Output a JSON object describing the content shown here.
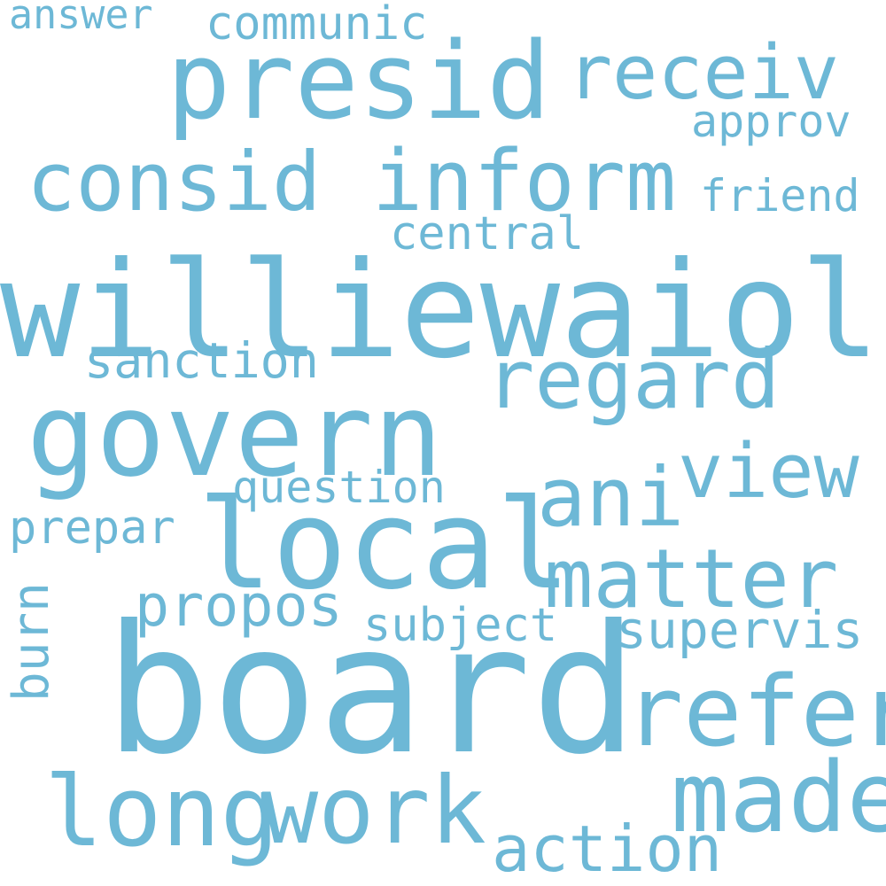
{
  "word_cloud": {
    "color": "#6db8d6",
    "words": {
      "williewaiola": "williewaiola",
      "board": "board",
      "presid": "presid",
      "govern": "govern",
      "local": "local",
      "inform": "inform",
      "receiv": "receiv",
      "consid": "consid",
      "regard": "regard",
      "ani": "ani",
      "matter": "matter",
      "view": "view",
      "refer": "refer",
      "made": "made",
      "work": "work",
      "long": "long",
      "propos": "propos",
      "supervis": "supervis",
      "subject": "subject",
      "question": "question",
      "sanction": "sanction",
      "central": "central",
      "friend": "friend",
      "approv": "approv",
      "communic": "communic",
      "answer": "answer",
      "prepar": "prepar",
      "burn": "burn",
      "action": "action"
    }
  }
}
